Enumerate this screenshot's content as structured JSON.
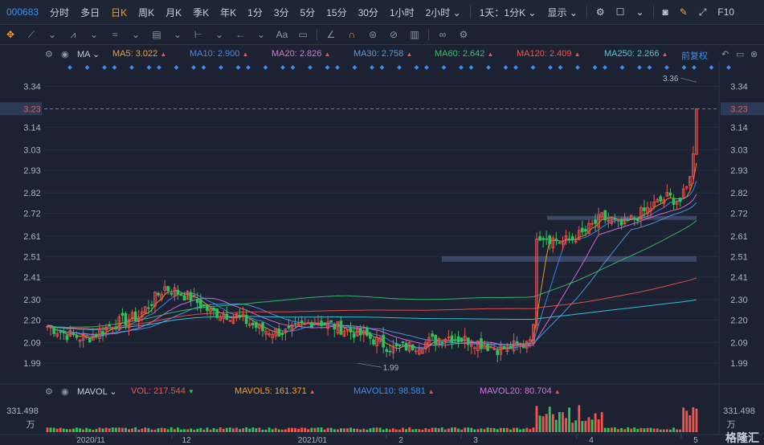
{
  "topbar": {
    "code": "000683",
    "periods": [
      "分时",
      "多日",
      "日K",
      "周K",
      "月K",
      "季K",
      "年K",
      "1分",
      "3分",
      "5分",
      "15分",
      "30分",
      "1小时",
      "2小时"
    ],
    "active_period": "日K",
    "range_select": "1天：1分K",
    "display_select": "显示",
    "right_label": "F10"
  },
  "ma_legend": {
    "title": "MA",
    "items": [
      {
        "label": "MA5: 3.022",
        "color": "#ff9d1c"
      },
      {
        "label": "MA10: 2.900",
        "color": "#3b8df5"
      },
      {
        "label": "MA20: 2.826",
        "color": "#e36de8"
      },
      {
        "label": "MA30: 2.758",
        "color": "#4f9cf0"
      },
      {
        "label": "MA60: 2.642",
        "color": "#37c26e"
      },
      {
        "label": "MA120: 2.409",
        "color": "#f2534b"
      },
      {
        "label": "MA250: 2.266",
        "color": "#35d2e6"
      }
    ],
    "adjust": "前复权"
  },
  "vol_legend": {
    "title": "MAVOL",
    "items": [
      {
        "label": "VOL: 217.544",
        "color": "#f2534b",
        "arrow": "down"
      },
      {
        "label": "MAVOL5: 161.371",
        "color": "#ff9d1c",
        "arrow": "up"
      },
      {
        "label": "MAVOL10: 98.581",
        "color": "#3b8df5",
        "arrow": "up"
      },
      {
        "label": "MAVOL20: 80.704",
        "color": "#e36de8",
        "arrow": "up"
      }
    ]
  },
  "price_axis": [
    "3.34",
    "3.23",
    "3.14",
    "3.03",
    "2.93",
    "2.82",
    "2.72",
    "2.61",
    "2.51",
    "2.41",
    "2.30",
    "2.20",
    "2.09",
    "1.99"
  ],
  "current_price": "3.23",
  "high_label": "3.36",
  "low_label": "1.99",
  "volume_axis": {
    "value": "331.498",
    "unit": "万"
  },
  "date_axis": [
    "2020/11",
    "12",
    "2021/01",
    "2",
    "3",
    "4",
    "5"
  ],
  "watermark": "格隆汇",
  "colors": {
    "up": "#f2534b",
    "down": "#2fc25b",
    "background": "#1c2232"
  }
}
